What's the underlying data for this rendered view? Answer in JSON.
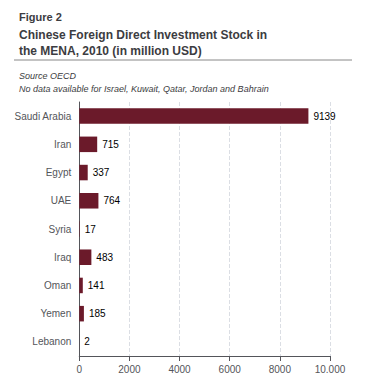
{
  "chart_data": {
    "type": "bar",
    "orientation": "horizontal",
    "subtitle": "Figure 2",
    "title": "Chinese Foreign Direct Investment Stock in\nthe MENA, 2010 (in million USD)",
    "annotations": [
      "Source OECD",
      "No data available for Israel, Kuwait, Qatar, Jordan and Bahrain"
    ],
    "categories": [
      "Saudi Arabia",
      "Iran",
      "Egypt",
      "UAE",
      "Syria",
      "Iraq",
      "Oman",
      "Yemen",
      "Lebanon"
    ],
    "values": [
      9139,
      715,
      337,
      764,
      17,
      483,
      141,
      185,
      2
    ],
    "color": "#6B1A2A",
    "xlim": [
      0,
      10000
    ],
    "xticks": [
      0,
      2000,
      4000,
      6000,
      8000,
      {
        "value": 10000,
        "label": "10.000"
      }
    ],
    "grid": true,
    "data_labels": true
  }
}
